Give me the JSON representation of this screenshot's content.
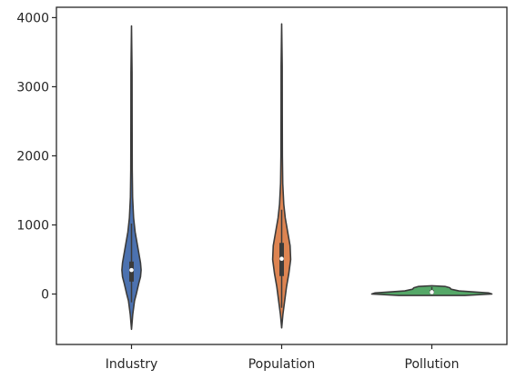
{
  "chart_data": {
    "type": "violin",
    "title": "",
    "xlabel": "",
    "ylabel": "",
    "categories": [
      "Industry",
      "Population",
      "Pollution"
    ],
    "ylim": [
      -730,
      4150
    ],
    "yticks": [
      0,
      1000,
      2000,
      3000,
      4000
    ],
    "grid": false,
    "colors": [
      "#4c72b0",
      "#dd8452",
      "#55a868"
    ],
    "series": [
      {
        "category": "Industry",
        "min": -510,
        "max": 3880,
        "median": 347,
        "q1": 180,
        "q3": 470,
        "whisker_low": -120,
        "whisker_high": 1020,
        "profile": [
          [
            -510,
            0.0
          ],
          [
            -300,
            0.02
          ],
          [
            -100,
            0.05
          ],
          [
            0,
            0.08
          ],
          [
            150,
            0.12
          ],
          [
            250,
            0.15
          ],
          [
            347,
            0.16
          ],
          [
            450,
            0.15
          ],
          [
            600,
            0.12
          ],
          [
            750,
            0.09
          ],
          [
            900,
            0.06
          ],
          [
            1100,
            0.035
          ],
          [
            1400,
            0.018
          ],
          [
            1800,
            0.012
          ],
          [
            2500,
            0.01
          ],
          [
            3200,
            0.009
          ],
          [
            3880,
            0.0
          ]
        ]
      },
      {
        "category": "Population",
        "min": -490,
        "max": 3910,
        "median": 510,
        "q1": 260,
        "q3": 740,
        "whisker_low": -200,
        "whisker_high": 1220,
        "profile": [
          [
            -490,
            0.0
          ],
          [
            -300,
            0.02
          ],
          [
            -100,
            0.05
          ],
          [
            100,
            0.08
          ],
          [
            300,
            0.12
          ],
          [
            500,
            0.15
          ],
          [
            700,
            0.14
          ],
          [
            900,
            0.1
          ],
          [
            1100,
            0.06
          ],
          [
            1300,
            0.035
          ],
          [
            1600,
            0.018
          ],
          [
            2000,
            0.012
          ],
          [
            2600,
            0.01
          ],
          [
            3300,
            0.009
          ],
          [
            3910,
            0.0
          ]
        ]
      },
      {
        "category": "Pollution",
        "min": -20,
        "max": 120,
        "median": 27,
        "q1": 10,
        "q3": 55,
        "whisker_low": -10,
        "whisker_high": 100,
        "profile": [
          [
            -20,
            0.55
          ],
          [
            0,
            1.0
          ],
          [
            15,
            0.95
          ],
          [
            27,
            0.75
          ],
          [
            45,
            0.45
          ],
          [
            70,
            0.32
          ],
          [
            90,
            0.3
          ],
          [
            110,
            0.22
          ],
          [
            120,
            0.0
          ]
        ]
      }
    ]
  }
}
